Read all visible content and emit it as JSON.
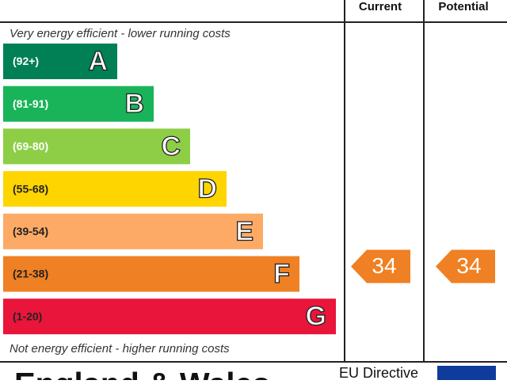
{
  "header": {
    "current": "Current",
    "potential": "Potential"
  },
  "top_note": "Very energy efficient - lower running costs",
  "bottom_note": "Not energy efficient - higher running costs",
  "bands": [
    {
      "range": "(92+)",
      "letter": "A",
      "color": "#008054"
    },
    {
      "range": "(81-91)",
      "letter": "B",
      "color": "#19b459"
    },
    {
      "range": "(69-80)",
      "letter": "C",
      "color": "#8dce46"
    },
    {
      "range": "(55-68)",
      "letter": "D",
      "color": "#ffd500"
    },
    {
      "range": "(39-54)",
      "letter": "E",
      "color": "#fcaa65"
    },
    {
      "range": "(21-38)",
      "letter": "F",
      "color": "#ef8023"
    },
    {
      "range": "(1-20)",
      "letter": "G",
      "color": "#e9153b"
    }
  ],
  "current": {
    "value": "34",
    "band": 5
  },
  "potential": {
    "value": "34",
    "band": 5
  },
  "footer": {
    "region": "England & Wales",
    "directive": "EU Directive"
  }
}
